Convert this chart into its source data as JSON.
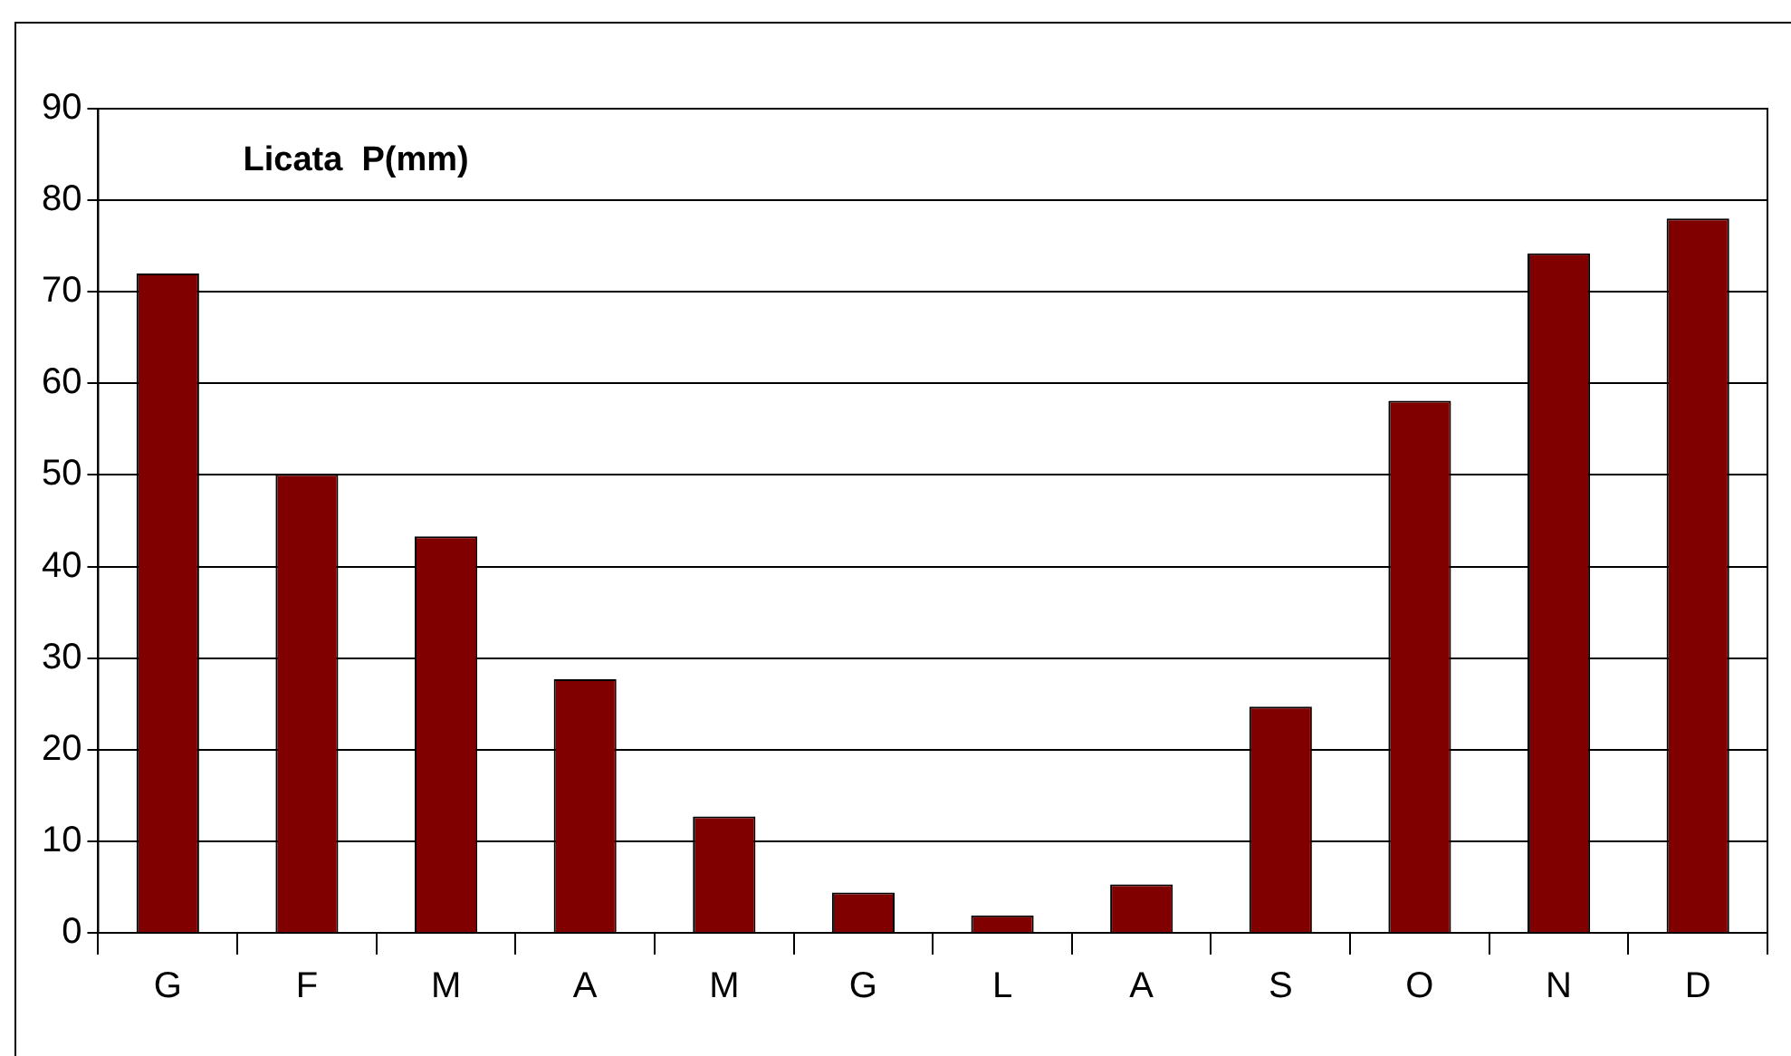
{
  "chart_data": {
    "type": "bar",
    "title": "Licata  P(mm)",
    "categories": [
      "G",
      "F",
      "M",
      "A",
      "M",
      "G",
      "L",
      "A",
      "S",
      "O",
      "N",
      "D"
    ],
    "values": [
      72,
      50.1,
      43.3,
      27.7,
      12.7,
      4.4,
      1.9,
      5.3,
      24.7,
      58.1,
      74.2,
      78
    ],
    "color": "#800000",
    "ylim": [
      0,
      90
    ],
    "yticks": [
      0,
      10,
      20,
      30,
      40,
      50,
      60,
      70,
      80,
      90
    ],
    "grid": "y",
    "legend": false
  }
}
